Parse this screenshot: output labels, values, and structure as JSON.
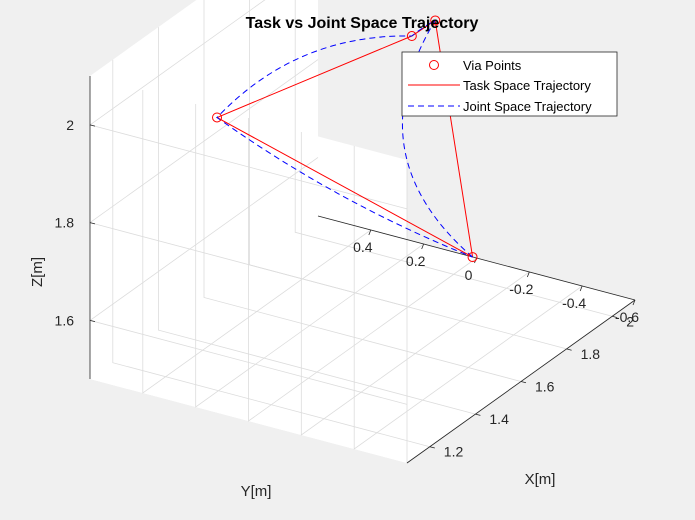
{
  "chart_data": {
    "type": "line3d",
    "title": "Task vs Joint Space Trajectory",
    "xlabel": "X[m]",
    "ylabel": "Y[m]",
    "zlabel": "Z[m]",
    "xlim": [
      1.1,
      2.1
    ],
    "ylim": [
      -0.6,
      0.6
    ],
    "zlim": [
      1.48,
      2.1
    ],
    "xticks": [
      {
        "v": 1.2,
        "label": "1.2"
      },
      {
        "v": 1.4,
        "label": "1.4"
      },
      {
        "v": 1.6,
        "label": "1.6"
      },
      {
        "v": 1.8,
        "label": "1.8"
      },
      {
        "v": 2.0,
        "label": "2"
      }
    ],
    "yticks": [
      {
        "v": -0.6,
        "label": "-0.6"
      },
      {
        "v": -0.4,
        "label": "-0.4"
      },
      {
        "v": -0.2,
        "label": "-0.2"
      },
      {
        "v": 0,
        "label": "0"
      },
      {
        "v": 0.2,
        "label": "0.2"
      },
      {
        "v": 0.4,
        "label": "0.4"
      }
    ],
    "zticks": [
      {
        "v": 1.6,
        "label": "1.6"
      },
      {
        "v": 1.8,
        "label": "1.8"
      },
      {
        "v": 2.0,
        "label": "2"
      }
    ],
    "grid": true,
    "legend_position": "top-right",
    "colors": {
      "via": "#ff0000",
      "task": "#ff0000",
      "joint": "#0000ff"
    },
    "legend": [
      "Via Points",
      "Task Space Trajectory",
      "Joint Space Trajectory"
    ],
    "via_points": [
      {
        "x": 1.78,
        "y": -0.12,
        "z": 2.09
      },
      {
        "x": 1.77,
        "y": -0.04,
        "z": 2.05
      },
      {
        "x": 1.24,
        "y": 0.24,
        "z": 2.02
      },
      {
        "x": 1.99,
        "y": -0.08,
        "z": 1.53
      }
    ],
    "task_space": [
      {
        "x": 1.99,
        "y": -0.08,
        "z": 1.53
      },
      {
        "x": 1.78,
        "y": -0.12,
        "z": 2.09
      },
      {
        "x": 1.77,
        "y": -0.04,
        "z": 2.05
      },
      {
        "x": 1.24,
        "y": 0.24,
        "z": 2.02
      },
      {
        "x": 1.99,
        "y": -0.08,
        "z": 1.53
      }
    ],
    "joint_space_waypoints": [
      {
        "x": 1.99,
        "y": -0.08,
        "z": 1.53
      },
      {
        "x": 1.78,
        "y": -0.12,
        "z": 2.09
      },
      {
        "x": 1.77,
        "y": -0.04,
        "z": 2.05
      },
      {
        "x": 1.24,
        "y": 0.24,
        "z": 2.02
      },
      {
        "x": 1.99,
        "y": -0.08,
        "z": 1.53
      }
    ]
  }
}
